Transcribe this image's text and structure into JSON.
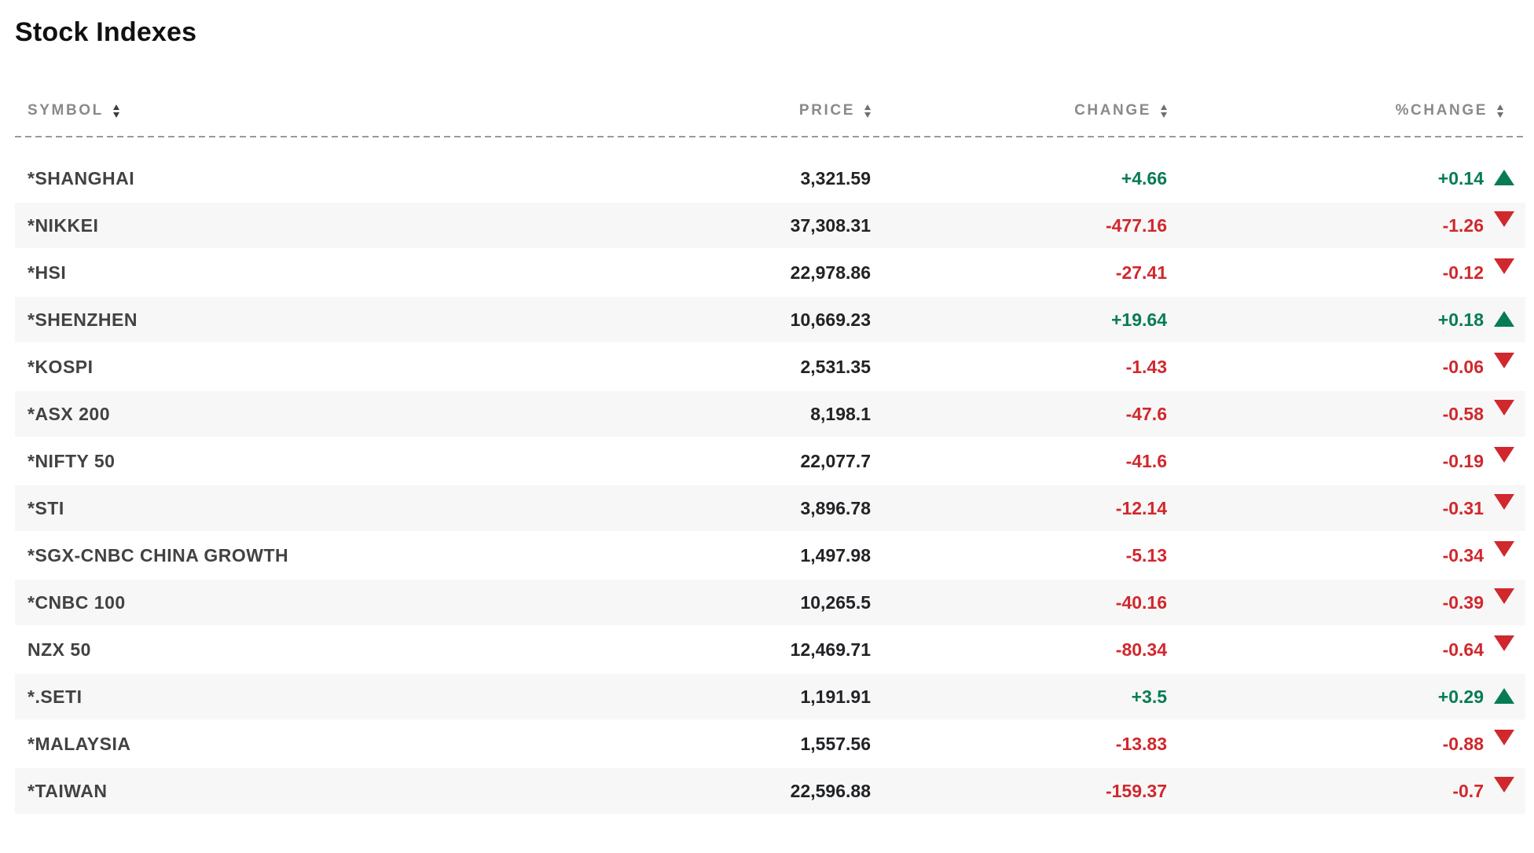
{
  "page": {
    "title": "Stock Indexes"
  },
  "colors": {
    "positive": "#077C52",
    "negative": "#D0282D"
  },
  "table": {
    "columns": [
      {
        "key": "symbol",
        "label": "SYMBOL"
      },
      {
        "key": "price",
        "label": "PRICE"
      },
      {
        "key": "change",
        "label": "CHANGE"
      },
      {
        "key": "pct_change",
        "label": "%CHANGE"
      }
    ],
    "rows": [
      {
        "symbol": "*SHANGHAI",
        "price": "3,321.59",
        "change": "+4.66",
        "pct_change": "+0.14",
        "direction": "up"
      },
      {
        "symbol": "*NIKKEI",
        "price": "37,308.31",
        "change": "-477.16",
        "pct_change": "-1.26",
        "direction": "down"
      },
      {
        "symbol": "*HSI",
        "price": "22,978.86",
        "change": "-27.41",
        "pct_change": "-0.12",
        "direction": "down"
      },
      {
        "symbol": "*SHENZHEN",
        "price": "10,669.23",
        "change": "+19.64",
        "pct_change": "+0.18",
        "direction": "up"
      },
      {
        "symbol": "*KOSPI",
        "price": "2,531.35",
        "change": "-1.43",
        "pct_change": "-0.06",
        "direction": "down"
      },
      {
        "symbol": "*ASX 200",
        "price": "8,198.1",
        "change": "-47.6",
        "pct_change": "-0.58",
        "direction": "down"
      },
      {
        "symbol": "*NIFTY 50",
        "price": "22,077.7",
        "change": "-41.6",
        "pct_change": "-0.19",
        "direction": "down"
      },
      {
        "symbol": "*STI",
        "price": "3,896.78",
        "change": "-12.14",
        "pct_change": "-0.31",
        "direction": "down"
      },
      {
        "symbol": "*SGX-CNBC CHINA GROWTH",
        "price": "1,497.98",
        "change": "-5.13",
        "pct_change": "-0.34",
        "direction": "down"
      },
      {
        "symbol": "*CNBC 100",
        "price": "10,265.5",
        "change": "-40.16",
        "pct_change": "-0.39",
        "direction": "down"
      },
      {
        "symbol": "NZX 50",
        "price": "12,469.71",
        "change": "-80.34",
        "pct_change": "-0.64",
        "direction": "down"
      },
      {
        "symbol": "*.SETI",
        "price": "1,191.91",
        "change": "+3.5",
        "pct_change": "+0.29",
        "direction": "up"
      },
      {
        "symbol": "*MALAYSIA",
        "price": "1,557.56",
        "change": "-13.83",
        "pct_change": "-0.88",
        "direction": "down"
      },
      {
        "symbol": "*TAIWAN",
        "price": "22,596.88",
        "change": "-159.37",
        "pct_change": "-0.7",
        "direction": "down"
      }
    ]
  }
}
